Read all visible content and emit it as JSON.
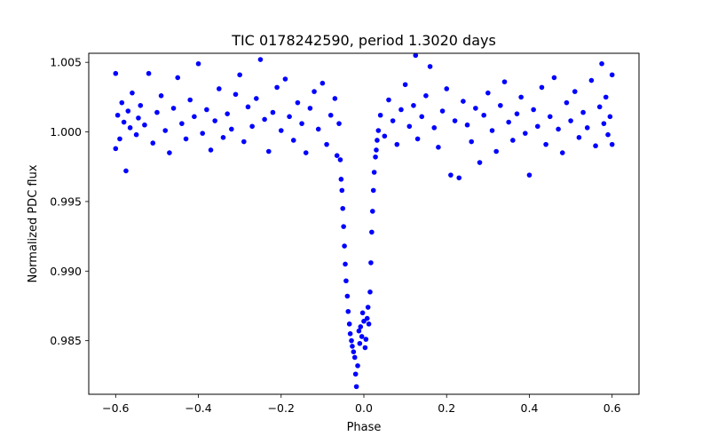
{
  "chart_data": {
    "type": "scatter",
    "title": "TIC 0178242590, period 1.3020 days",
    "xlabel": "Phase",
    "ylabel": "Normalized PDC flux",
    "xlim": [
      -0.665,
      0.665
    ],
    "ylim": [
      0.98115,
      1.00565
    ],
    "xticks": [
      -0.6,
      -0.4,
      -0.2,
      0.0,
      0.2,
      0.4,
      0.6
    ],
    "xtick_labels": [
      "−0.6",
      "−0.4",
      "−0.2",
      "0.0",
      "0.2",
      "0.4",
      "0.6"
    ],
    "yticks": [
      0.985,
      0.99,
      0.995,
      1.0,
      1.005
    ],
    "ytick_labels": [
      "0.985",
      "0.990",
      "0.995",
      "1.000",
      "1.005"
    ],
    "grid": false,
    "legend": "none",
    "marker_color": "#0000ff",
    "series": [
      {
        "points": [
          [
            -0.6,
            1.0042
          ],
          [
            -0.6,
            0.9988
          ],
          [
            -0.595,
            1.0012
          ],
          [
            -0.59,
            0.9995
          ],
          [
            -0.585,
            1.0021
          ],
          [
            -0.58,
            1.0007
          ],
          [
            -0.575,
            0.9972
          ],
          [
            -0.57,
            1.0015
          ],
          [
            -0.565,
            1.0003
          ],
          [
            -0.56,
            1.0028
          ],
          [
            -0.55,
            0.9998
          ],
          [
            -0.545,
            1.001
          ],
          [
            -0.54,
            1.0019
          ],
          [
            -0.53,
            1.0005
          ],
          [
            -0.52,
            1.0042
          ],
          [
            -0.51,
            0.9992
          ],
          [
            -0.5,
            1.0014
          ],
          [
            -0.49,
            1.0026
          ],
          [
            -0.48,
            1.0001
          ],
          [
            -0.47,
            0.9985
          ],
          [
            -0.46,
            1.0017
          ],
          [
            -0.45,
            1.0039
          ],
          [
            -0.44,
            1.0006
          ],
          [
            -0.43,
            0.9995
          ],
          [
            -0.42,
            1.0023
          ],
          [
            -0.41,
            1.0011
          ],
          [
            -0.4,
            1.0049
          ],
          [
            -0.39,
            0.9999
          ],
          [
            -0.38,
            1.0016
          ],
          [
            -0.37,
            0.9987
          ],
          [
            -0.36,
            1.0008
          ],
          [
            -0.35,
            1.0031
          ],
          [
            -0.34,
            0.9996
          ],
          [
            -0.33,
            1.0013
          ],
          [
            -0.32,
            1.0002
          ],
          [
            -0.31,
            1.0027
          ],
          [
            -0.3,
            1.0041
          ],
          [
            -0.29,
            0.9993
          ],
          [
            -0.28,
            1.0018
          ],
          [
            -0.27,
            1.0004
          ],
          [
            -0.26,
            1.0024
          ],
          [
            -0.25,
            1.0052
          ],
          [
            -0.24,
            1.0009
          ],
          [
            -0.23,
            0.9986
          ],
          [
            -0.22,
            1.0014
          ],
          [
            -0.21,
            1.0032
          ],
          [
            -0.2,
            1.0001
          ],
          [
            -0.19,
            1.0038
          ],
          [
            -0.18,
            1.0011
          ],
          [
            -0.17,
            0.9994
          ],
          [
            -0.16,
            1.0021
          ],
          [
            -0.15,
            1.0006
          ],
          [
            -0.14,
            0.9985
          ],
          [
            -0.13,
            1.0017
          ],
          [
            -0.12,
            1.0029
          ],
          [
            -0.11,
            1.0002
          ],
          [
            -0.1,
            1.0035
          ],
          [
            -0.09,
            0.9991
          ],
          [
            -0.08,
            1.0012
          ],
          [
            -0.07,
            1.0024
          ],
          [
            -0.065,
            0.9983
          ],
          [
            -0.06,
            1.0006
          ],
          [
            -0.057,
            0.998
          ],
          [
            -0.055,
            0.9966
          ],
          [
            -0.053,
            0.9958
          ],
          [
            -0.051,
            0.9945
          ],
          [
            -0.049,
            0.9932
          ],
          [
            -0.047,
            0.9918
          ],
          [
            -0.045,
            0.9905
          ],
          [
            -0.043,
            0.9893
          ],
          [
            -0.04,
            0.9882
          ],
          [
            -0.038,
            0.9871
          ],
          [
            -0.035,
            0.9862
          ],
          [
            -0.033,
            0.9855
          ],
          [
            -0.03,
            0.985
          ],
          [
            -0.028,
            0.9846
          ],
          [
            -0.025,
            0.9842
          ],
          [
            -0.022,
            0.9838
          ],
          [
            -0.02,
            0.9826
          ],
          [
            -0.018,
            0.9817
          ],
          [
            -0.015,
            0.9832
          ],
          [
            -0.012,
            0.9857
          ],
          [
            -0.01,
            0.9848
          ],
          [
            -0.008,
            0.986
          ],
          [
            -0.005,
            0.9853
          ],
          [
            -0.003,
            0.987
          ],
          [
            0.0,
            0.9864
          ],
          [
            0.003,
            0.9845
          ],
          [
            0.005,
            0.9851
          ],
          [
            0.008,
            0.9866
          ],
          [
            0.01,
            0.9874
          ],
          [
            0.012,
            0.9862
          ],
          [
            0.015,
            0.9885
          ],
          [
            0.017,
            0.9906
          ],
          [
            0.019,
            0.9928
          ],
          [
            0.021,
            0.9943
          ],
          [
            0.023,
            0.9958
          ],
          [
            0.025,
            0.9971
          ],
          [
            0.028,
            0.9982
          ],
          [
            0.03,
            0.9987
          ],
          [
            0.032,
            0.9994
          ],
          [
            0.035,
            1.0001
          ],
          [
            0.04,
            1.0012
          ],
          [
            0.05,
            0.9997
          ],
          [
            0.06,
            1.0023
          ],
          [
            0.07,
            1.0008
          ],
          [
            0.08,
            0.9991
          ],
          [
            0.09,
            1.0016
          ],
          [
            0.1,
            1.0034
          ],
          [
            0.11,
            1.0004
          ],
          [
            0.12,
            1.0019
          ],
          [
            0.125,
            1.0055
          ],
          [
            0.13,
            0.9995
          ],
          [
            0.14,
            1.0011
          ],
          [
            0.15,
            1.0026
          ],
          [
            0.16,
            1.0047
          ],
          [
            0.17,
            1.0003
          ],
          [
            0.18,
            0.9989
          ],
          [
            0.19,
            1.0015
          ],
          [
            0.2,
            1.0031
          ],
          [
            0.21,
            0.9969
          ],
          [
            0.22,
            1.0008
          ],
          [
            0.23,
            0.9967
          ],
          [
            0.24,
            1.0022
          ],
          [
            0.25,
            1.0005
          ],
          [
            0.26,
            0.9993
          ],
          [
            0.27,
            1.0017
          ],
          [
            0.28,
            0.9978
          ],
          [
            0.29,
            1.0012
          ],
          [
            0.3,
            1.0028
          ],
          [
            0.31,
            1.0001
          ],
          [
            0.32,
            0.9986
          ],
          [
            0.33,
            1.0019
          ],
          [
            0.34,
            1.0036
          ],
          [
            0.35,
            1.0007
          ],
          [
            0.36,
            0.9994
          ],
          [
            0.37,
            1.0013
          ],
          [
            0.38,
            1.0025
          ],
          [
            0.39,
            0.9999
          ],
          [
            0.4,
            0.9969
          ],
          [
            0.41,
            1.0016
          ],
          [
            0.42,
            1.0004
          ],
          [
            0.43,
            1.0032
          ],
          [
            0.44,
            0.9991
          ],
          [
            0.45,
            1.0011
          ],
          [
            0.46,
            1.0039
          ],
          [
            0.47,
            1.0002
          ],
          [
            0.48,
            0.9985
          ],
          [
            0.49,
            1.0021
          ],
          [
            0.5,
            1.0008
          ],
          [
            0.51,
            1.0029
          ],
          [
            0.52,
            0.9996
          ],
          [
            0.53,
            1.0014
          ],
          [
            0.54,
            1.0003
          ],
          [
            0.55,
            1.0037
          ],
          [
            0.56,
            0.999
          ],
          [
            0.57,
            1.0018
          ],
          [
            0.575,
            1.0049
          ],
          [
            0.58,
            1.0006
          ],
          [
            0.585,
            1.0025
          ],
          [
            0.59,
            0.9998
          ],
          [
            0.595,
            1.0011
          ],
          [
            0.6,
            1.0041
          ],
          [
            0.6,
            0.9991
          ]
        ]
      }
    ]
  }
}
